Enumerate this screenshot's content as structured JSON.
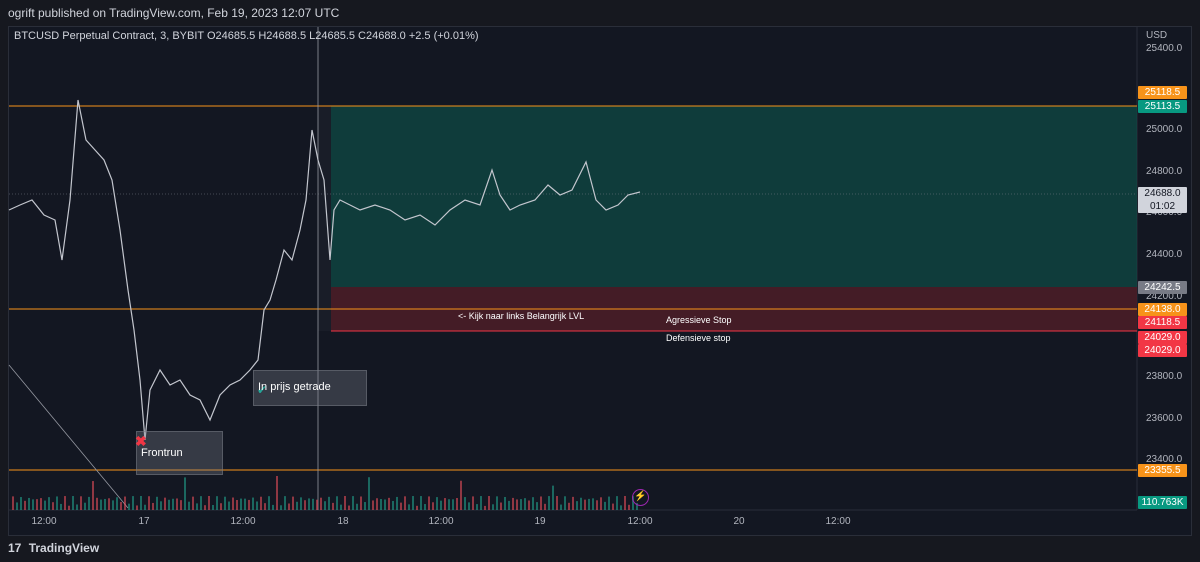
{
  "header": {
    "publisher": "ogrift published on TradingView.com, Feb 19, 2023 12:07 UTC"
  },
  "symbol": {
    "info": "BTCUSD Perpetual Contract, 3, BYBIT  O24685.5  H24688.5  L24685.5  C24688.0  +2.5 (+0.01%)"
  },
  "price_axis": {
    "currency": "USD",
    "ticks": [
      "25400.0",
      "25000.0",
      "24800.0",
      "24600.0",
      "24400.0",
      "24200.0",
      "23800.0",
      "23600.0",
      "23400.0"
    ]
  },
  "price_tags": [
    {
      "text": "25118.5",
      "color": "#f7931a"
    },
    {
      "text": "25113.5",
      "color": "#089981"
    },
    {
      "text": "24688.0\n01:02",
      "color": "#d1d4dc"
    },
    {
      "text": "24242.5",
      "color": "#787b86"
    },
    {
      "text": "24138.0",
      "color": "#f7931a"
    },
    {
      "text": "24118.5",
      "color": "#f23645"
    },
    {
      "text": "24029.0",
      "color": "#f23645"
    },
    {
      "text": "24029.0",
      "color": "#f23645"
    },
    {
      "text": "23355.5",
      "color": "#f7931a"
    },
    {
      "text": "110.763K",
      "color": "#089981"
    }
  ],
  "time_axis": [
    "12:00",
    "17",
    "12:00",
    "18",
    "12:00",
    "19",
    "12:00",
    "20",
    "12:00"
  ],
  "annotations": {
    "in_prijs": "In prijs getrade",
    "frontrun": "Frontrun",
    "kijk": "<- Kijk naar links Belangrijk LVL",
    "agressieve": "Agressieve  Stop",
    "defensieve": "Defensieve stop"
  },
  "footer": {
    "brand": "TradingView",
    "logo": "17"
  },
  "colors": {
    "long": "#089981",
    "short": "#f23645",
    "level": "#f7931a",
    "background": "#131722"
  }
}
